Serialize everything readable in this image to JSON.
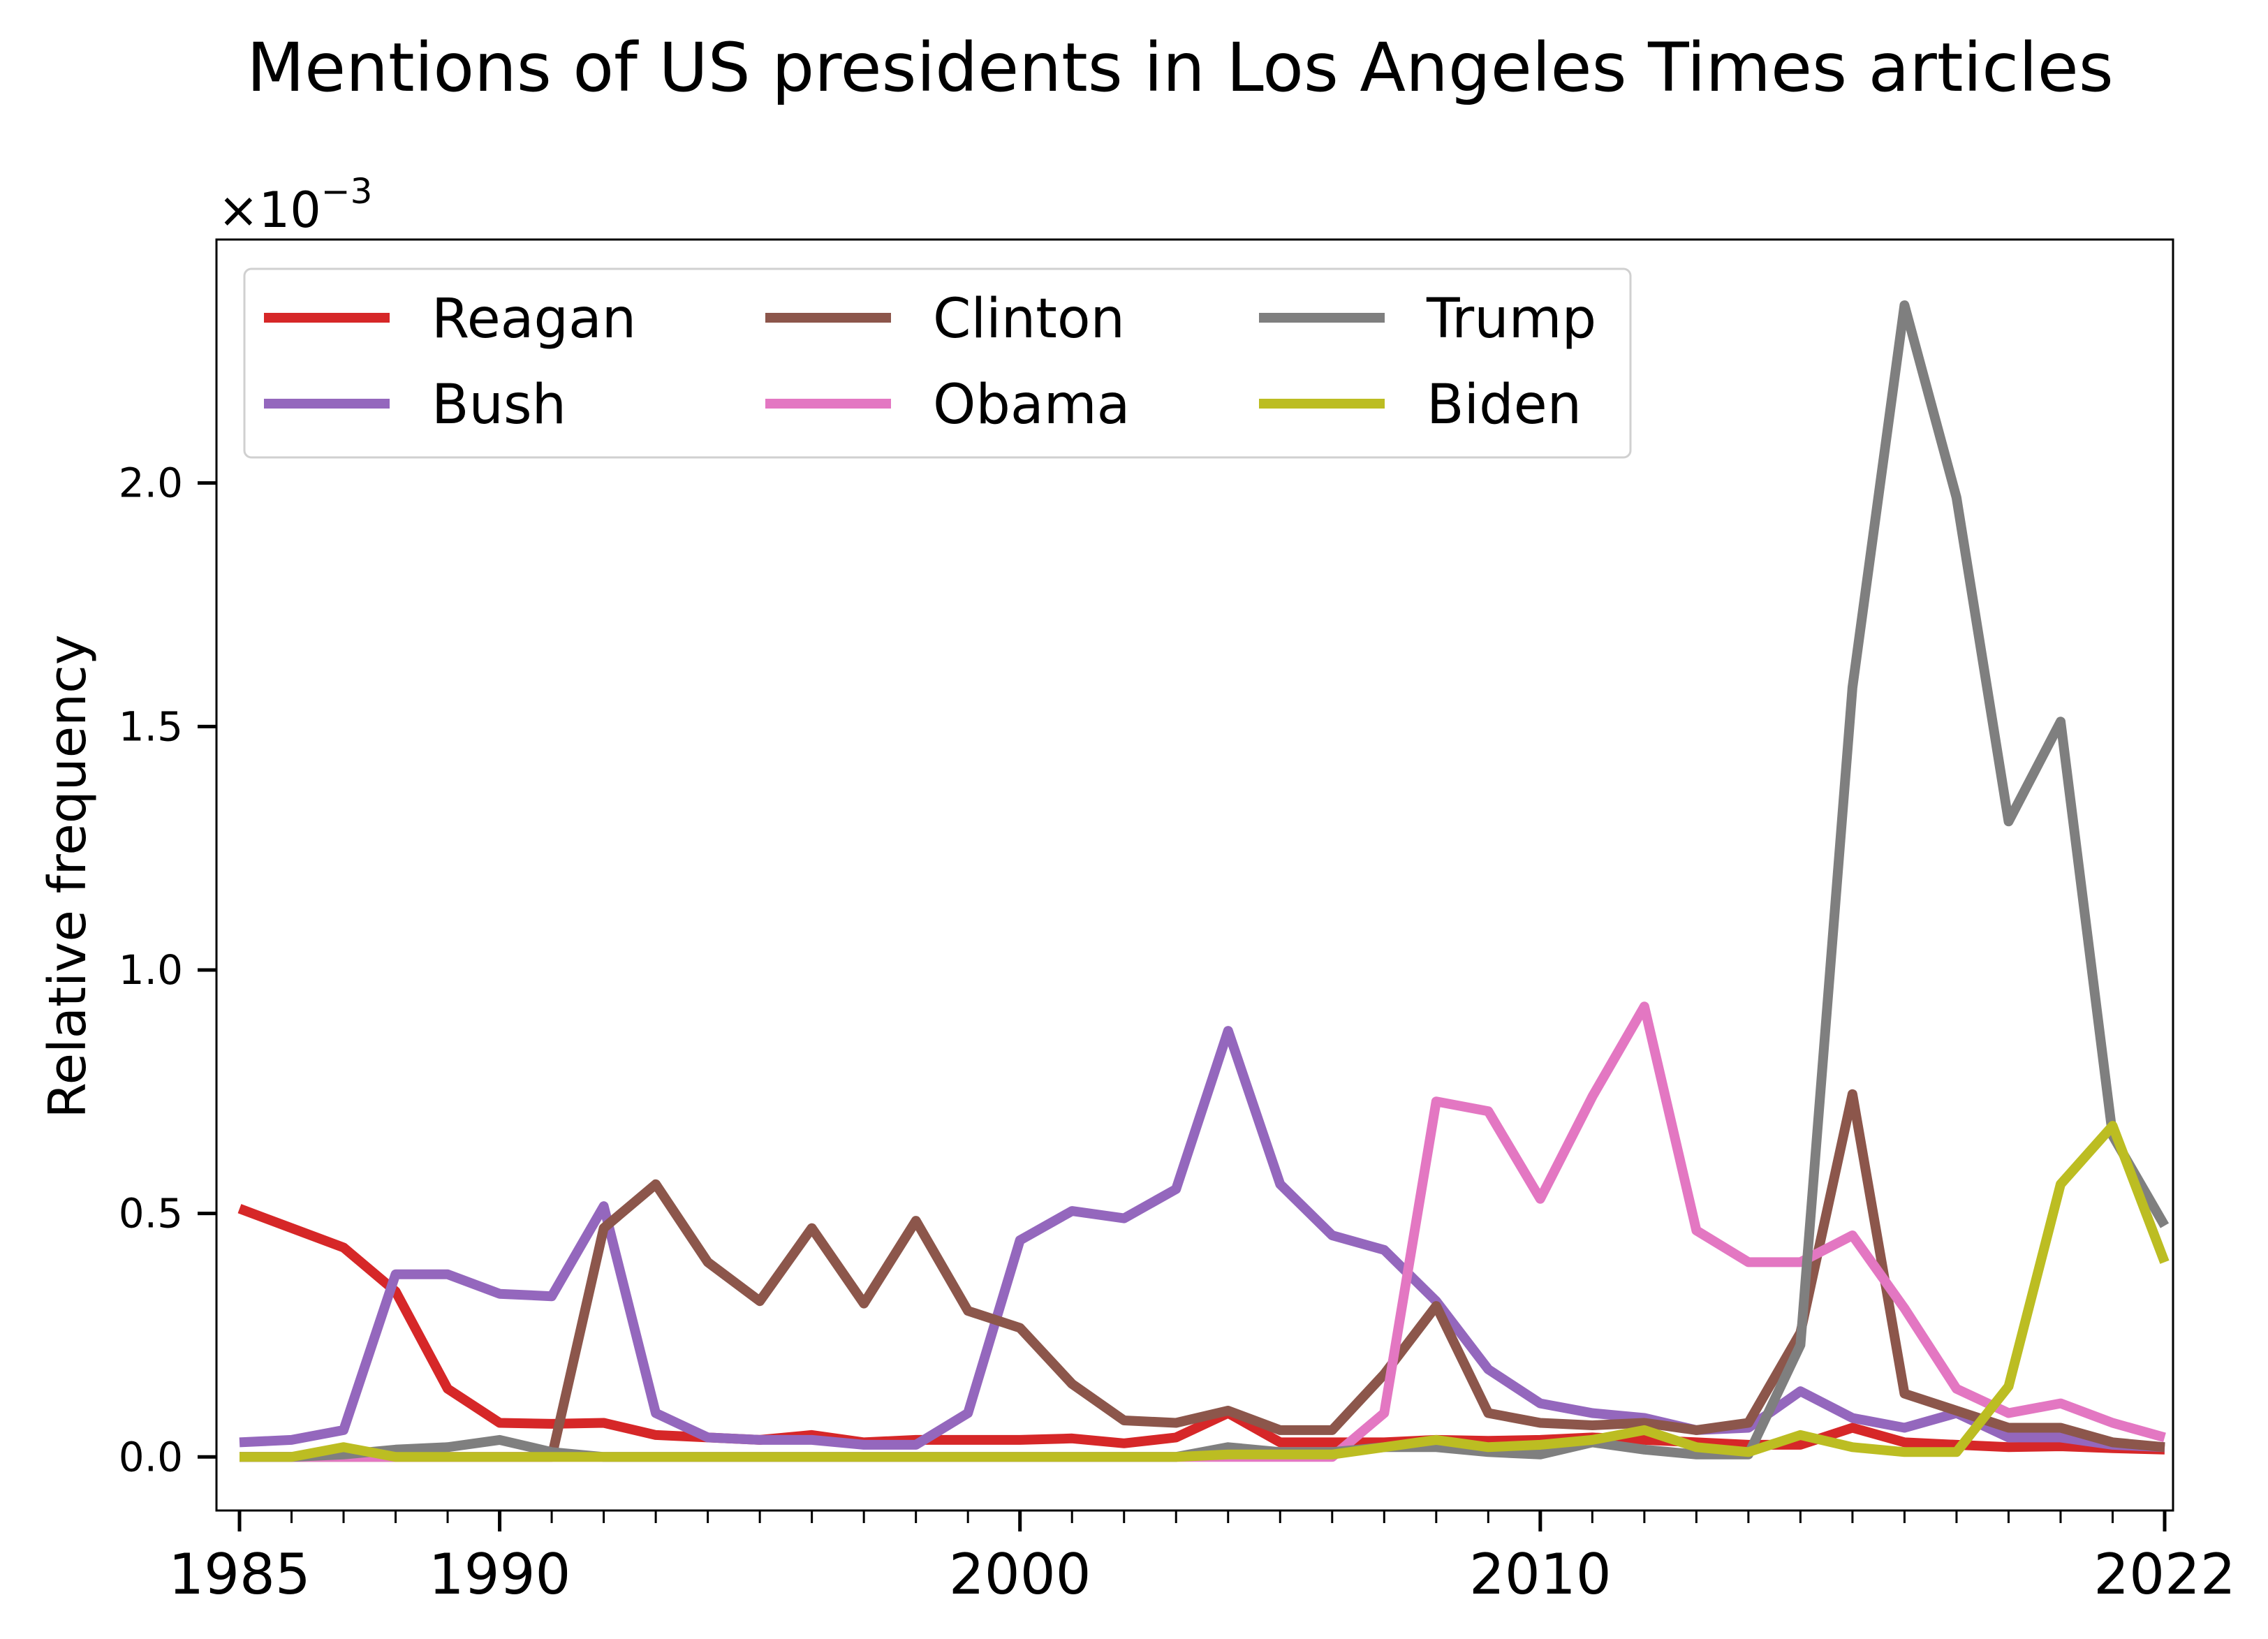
{
  "chart_data": {
    "type": "line",
    "title": "Mentions of US presidents in Los Angeles Times articles",
    "ylabel": "Relative frequency",
    "xlabel": "",
    "y_scale_label": "×10",
    "y_scale_exponent": "−3",
    "x_range": [
      1985,
      2022
    ],
    "ylim": [
      -0.11,
      2.5
    ],
    "x_ticks": [
      1985,
      1990,
      2000,
      2010,
      2022
    ],
    "y_ticks": [
      0.0,
      0.5,
      1.0,
      1.5,
      2.0
    ],
    "y_tick_labels": [
      "0.0",
      "0.5",
      "1.0",
      "1.5",
      "2.0"
    ],
    "grid": false,
    "legend": {
      "placement": "top-left",
      "columns": 3
    },
    "x": [
      1985,
      1986,
      1987,
      1988,
      1989,
      1990,
      1991,
      1992,
      1993,
      1994,
      1995,
      1996,
      1997,
      1998,
      1999,
      2000,
      2001,
      2002,
      2003,
      2004,
      2005,
      2006,
      2007,
      2008,
      2009,
      2010,
      2011,
      2012,
      2013,
      2014,
      2015,
      2016,
      2017,
      2018,
      2019,
      2020,
      2021,
      2022
    ],
    "series": [
      {
        "name": "Reagan",
        "color": "#d62728",
        "values": [
          0.51,
          0.47,
          0.43,
          0.34,
          0.14,
          0.07,
          0.068,
          0.07,
          0.045,
          0.04,
          0.035,
          0.045,
          0.03,
          0.035,
          0.035,
          0.035,
          0.038,
          0.028,
          0.04,
          0.09,
          0.03,
          0.03,
          0.03,
          0.035,
          0.033,
          0.035,
          0.04,
          0.035,
          0.03,
          0.025,
          0.025,
          0.06,
          0.03,
          0.025,
          0.02,
          0.022,
          0.018,
          0.015
        ]
      },
      {
        "name": "Bush",
        "color": "#9467bd",
        "values": [
          0.03,
          0.035,
          0.055,
          0.375,
          0.375,
          0.335,
          0.33,
          0.515,
          0.09,
          0.04,
          0.035,
          0.035,
          0.025,
          0.025,
          0.09,
          0.445,
          0.505,
          0.49,
          0.55,
          0.875,
          0.56,
          0.455,
          0.425,
          0.32,
          0.18,
          0.11,
          0.09,
          0.08,
          0.055,
          0.06,
          0.135,
          0.08,
          0.06,
          0.09,
          0.04,
          0.04,
          0.025,
          0.02
        ]
      },
      {
        "name": "Clinton",
        "color": "#8c564b",
        "values": [
          0.0,
          0.0,
          0.0,
          0.0,
          0.0,
          0.0,
          0.0,
          0.47,
          0.56,
          0.4,
          0.32,
          0.47,
          0.315,
          0.485,
          0.3,
          0.265,
          0.15,
          0.075,
          0.07,
          0.095,
          0.055,
          0.055,
          0.17,
          0.31,
          0.09,
          0.07,
          0.065,
          0.07,
          0.055,
          0.07,
          0.255,
          0.745,
          0.13,
          0.095,
          0.06,
          0.06,
          0.03,
          0.02
        ]
      },
      {
        "name": "Obama",
        "color": "#e377c2",
        "values": [
          0.0,
          0.0,
          0.0,
          0.0,
          0.0,
          0.0,
          0.0,
          0.0,
          0.0,
          0.0,
          0.0,
          0.0,
          0.0,
          0.0,
          0.0,
          0.0,
          0.0,
          0.0,
          0.0,
          0.0,
          0.0,
          0.0,
          0.09,
          0.73,
          0.71,
          0.53,
          0.74,
          0.925,
          0.465,
          0.4,
          0.4,
          0.455,
          0.305,
          0.14,
          0.09,
          0.11,
          0.07,
          0.04
        ]
      },
      {
        "name": "Trump",
        "color": "#7f7f7f",
        "values": [
          0.0,
          0.0,
          0.005,
          0.015,
          0.02,
          0.035,
          0.01,
          0.0,
          0.0,
          0.0,
          0.0,
          0.0,
          0.0,
          0.0,
          0.0,
          0.0,
          0.0,
          0.0,
          0.0,
          0.02,
          0.01,
          0.01,
          0.02,
          0.02,
          0.01,
          0.005,
          0.03,
          0.015,
          0.005,
          0.005,
          0.23,
          1.58,
          2.365,
          1.97,
          1.305,
          1.51,
          0.66,
          0.475
        ]
      },
      {
        "name": "Biden",
        "color": "#bcbd22",
        "values": [
          0.0,
          0.0,
          0.02,
          0.0,
          0.0,
          0.0,
          0.0,
          0.0,
          0.0,
          0.0,
          0.0,
          0.0,
          0.0,
          0.0,
          0.0,
          0.0,
          0.0,
          0.0,
          0.0,
          0.005,
          0.005,
          0.005,
          0.02,
          0.035,
          0.02,
          0.025,
          0.035,
          0.055,
          0.02,
          0.01,
          0.045,
          0.02,
          0.01,
          0.01,
          0.145,
          0.56,
          0.68,
          0.4
        ]
      }
    ]
  }
}
